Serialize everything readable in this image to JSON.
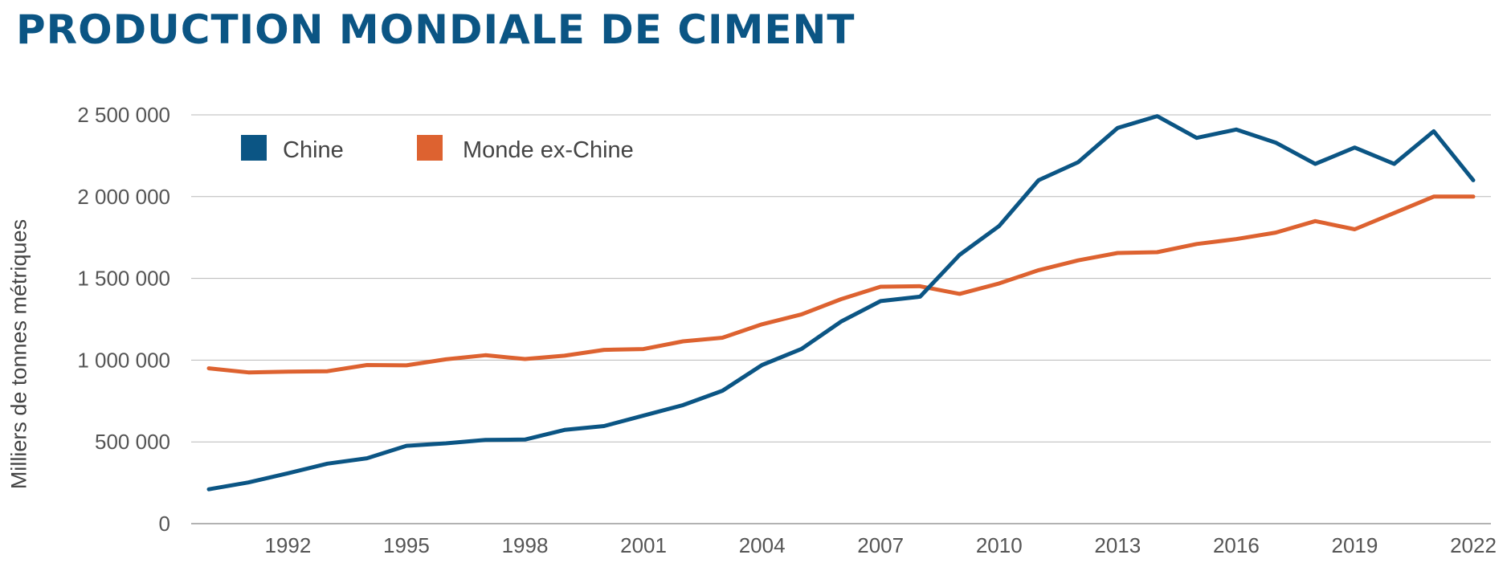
{
  "title": "PRODUCTION MONDIALE DE CIMENT",
  "colors": {
    "title": "#0b5584",
    "chine": "#0b5584",
    "monde": "#dd6230",
    "grid": "#b8b8b8",
    "text": "#555555"
  },
  "chart_data": {
    "type": "line",
    "title": "PRODUCTION MONDIALE DE CIMENT",
    "xlabel": "",
    "ylabel": "Milliers de tonnes métriques",
    "x": [
      1990,
      1991,
      1992,
      1993,
      1994,
      1995,
      1996,
      1997,
      1998,
      1999,
      2000,
      2001,
      2002,
      2003,
      2004,
      2005,
      2006,
      2007,
      2008,
      2009,
      2010,
      2011,
      2012,
      2013,
      2014,
      2015,
      2016,
      2017,
      2018,
      2019,
      2020,
      2021,
      2022
    ],
    "x_ticks": [
      1992,
      1995,
      1998,
      2001,
      2004,
      2007,
      2010,
      2013,
      2016,
      2019,
      2022
    ],
    "x_tick_labels": [
      "1992",
      "1995",
      "1998",
      "2001",
      "2004",
      "2007",
      "2010",
      "2013",
      "2016",
      "2019",
      "2022"
    ],
    "ylim": [
      0,
      2500000
    ],
    "y_ticks": [
      0,
      500000,
      1000000,
      1500000,
      2000000,
      2500000
    ],
    "y_tick_labels": [
      "0",
      "500 000",
      "1 000 000",
      "1 500 000",
      "2 000 000",
      "2 500 000"
    ],
    "grid": true,
    "legend_position": "top-left",
    "series": [
      {
        "name": "Chine",
        "color": "#0b5584",
        "values": [
          210000,
          252000,
          308000,
          367000,
          400000,
          476000,
          491000,
          512000,
          514000,
          573000,
          597000,
          661000,
          725000,
          813000,
          970000,
          1069000,
          1236000,
          1361000,
          1388000,
          1644000,
          1820000,
          2100000,
          2210000,
          2420000,
          2492000,
          2359000,
          2410000,
          2330000,
          2200000,
          2300000,
          2200000,
          2400000,
          2100000
        ]
      },
      {
        "name": "Monde ex-Chine",
        "color": "#dd6230",
        "values": [
          950000,
          925000,
          930000,
          932000,
          970000,
          968000,
          1005000,
          1030000,
          1007000,
          1027000,
          1063000,
          1068000,
          1115000,
          1137000,
          1219000,
          1280000,
          1373000,
          1449000,
          1452000,
          1405000,
          1469000,
          1550000,
          1610000,
          1655000,
          1660000,
          1710000,
          1740000,
          1780000,
          1850000,
          1800000,
          1900000,
          2000000,
          2000000
        ]
      }
    ]
  }
}
